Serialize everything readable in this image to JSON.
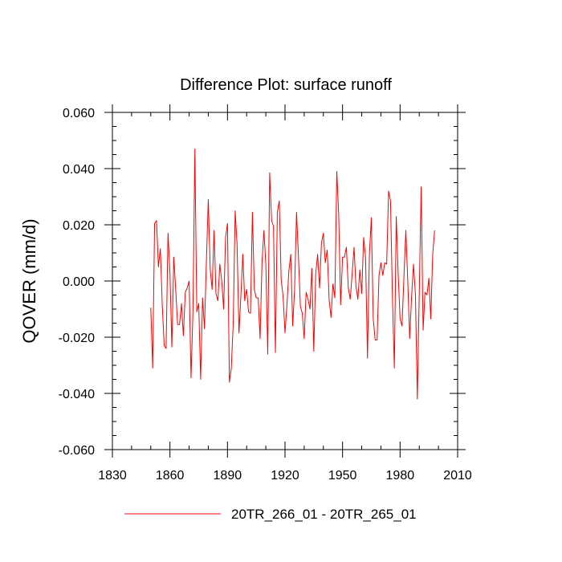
{
  "chart_data": {
    "type": "line",
    "title": "Difference Plot: surface runoff",
    "ylabel": "QOVER  (mm/d)",
    "xlabel": "",
    "xlim": [
      1830,
      2010
    ],
    "ylim": [
      -0.06,
      0.06
    ],
    "x_ticks": [
      1830,
      1860,
      1890,
      1920,
      1950,
      1980,
      2010
    ],
    "y_ticks": [
      -0.06,
      -0.04,
      -0.02,
      0.0,
      0.02,
      0.04,
      0.06
    ],
    "x_tick_labels": [
      "1830",
      "1860",
      "1890",
      "1920",
      "1950",
      "1980",
      "2010"
    ],
    "y_tick_labels": [
      "-0.060",
      "-0.040",
      "-0.020",
      "0.000",
      "0.020",
      "0.040",
      "0.060"
    ],
    "grid": false,
    "legend_position": "bottom-center",
    "series": [
      {
        "name": "20TR_266_01 - 20TR_265_01",
        "color": "#ff0000",
        "x_start": 1850,
        "x_step": 1,
        "values": [
          -0.0095,
          -0.031,
          0.0205,
          0.0215,
          0.005,
          0.0115,
          -0.0085,
          -0.023,
          -0.024,
          0.017,
          0.003,
          -0.0235,
          0.0085,
          -0.003,
          -0.0155,
          -0.0155,
          -0.008,
          -0.0195,
          -0.004,
          -0.0025,
          0.0,
          -0.0345,
          -0.011,
          0.047,
          -0.011,
          -0.008,
          -0.035,
          -0.006,
          -0.017,
          0.007,
          0.029,
          0.004,
          -0.003,
          0.018,
          -0.0045,
          -0.007,
          0.006,
          0.0,
          -0.01,
          0.0155,
          0.0205,
          -0.036,
          -0.031,
          -0.015,
          0.025,
          0.013,
          -0.0185,
          -0.005,
          0.0095,
          -0.007,
          -0.003,
          -0.011,
          -0.0115,
          0.0245,
          -0.003,
          -0.006,
          -0.006,
          -0.0205,
          0.0065,
          0.018,
          0.006,
          -0.026,
          0.0385,
          0.0215,
          0.0195,
          -0.0255,
          0.0245,
          0.0285,
          0.0005,
          -0.0055,
          -0.0185,
          -0.0085,
          0.0035,
          0.0095,
          -0.016,
          -0.003,
          0.0245,
          0.009,
          -0.009,
          -0.0115,
          -0.0205,
          -0.004,
          -0.0065,
          -0.01,
          0.0045,
          -0.025,
          0.0025,
          0.0095,
          -0.0025,
          0.0135,
          0.017,
          0.0065,
          0.011,
          -0.0065,
          -0.013,
          -0.001,
          -0.006,
          0.039,
          0.0235,
          -0.0085,
          0.0085,
          0.0085,
          0.012,
          -0.0025,
          -0.0065,
          0.0025,
          0.012,
          -0.002,
          -0.0065,
          0.004,
          -0.0045,
          0.0155,
          0.0085,
          -0.0275,
          0.0095,
          0.0225,
          -0.0135,
          -0.021,
          -0.021,
          0.002,
          0.0065,
          0.002,
          0.0065,
          0.006,
          0.032,
          0.0285,
          -0.0055,
          -0.031,
          0.023,
          0.0025,
          -0.0135,
          -0.016,
          0.0015,
          0.018,
          0.0,
          -0.0205,
          -0.0055,
          0.006,
          -0.005,
          -0.042,
          -0.004,
          0.0335,
          -0.0175,
          -0.004,
          -0.005,
          0.001,
          -0.0135,
          0.0095,
          0.018
        ]
      }
    ]
  }
}
